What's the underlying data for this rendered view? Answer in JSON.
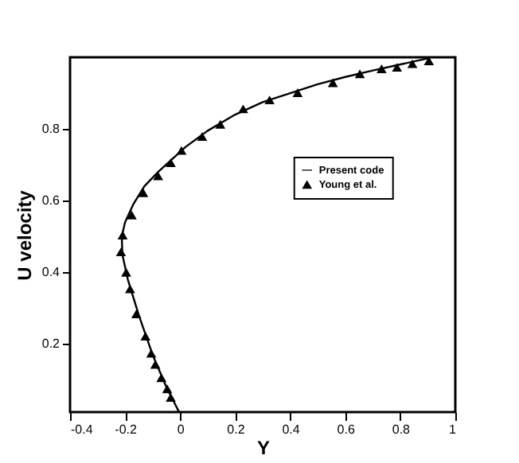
{
  "chart_data": {
    "type": "line",
    "xlabel": "Y",
    "ylabel": "U velocity",
    "xlim": [
      -0.4,
      1
    ],
    "ylim": [
      0.01,
      1
    ],
    "xticks": [
      -0.4,
      -0.2,
      0,
      0.2,
      0.4,
      0.6,
      0.8,
      1
    ],
    "yticks": [
      0.2,
      0.4,
      0.6,
      0.8
    ],
    "grid": false,
    "legend": "right",
    "series": [
      {
        "name": "Present code",
        "type": "line",
        "color": "#000000",
        "line_style": "solid",
        "marker": "none",
        "x": [
          -0.005,
          -0.05,
          -0.1,
          -0.15,
          -0.19,
          -0.21,
          -0.212,
          -0.2,
          -0.17,
          -0.13,
          -0.08,
          -0.03,
          0.02,
          0.1,
          0.2,
          0.3,
          0.4,
          0.5,
          0.6,
          0.7,
          0.8,
          0.9
        ],
        "values": [
          0.012,
          0.08,
          0.17,
          0.28,
          0.38,
          0.45,
          0.5,
          0.54,
          0.59,
          0.64,
          0.68,
          0.715,
          0.75,
          0.795,
          0.84,
          0.875,
          0.9,
          0.925,
          0.945,
          0.963,
          0.98,
          0.997
        ]
      },
      {
        "name": "Young et al.",
        "type": "scatter",
        "color": "#000000",
        "marker": "triangle",
        "x": [
          0.904,
          0.844,
          0.788,
          0.732,
          0.653,
          0.555,
          0.427,
          0.325,
          0.229,
          0.146,
          0.08,
          0.005,
          -0.034,
          -0.08,
          -0.134,
          -0.176,
          -0.209,
          -0.215,
          -0.196,
          -0.182,
          -0.159,
          -0.126,
          -0.105,
          -0.09,
          -0.068,
          -0.047,
          -0.034
        ],
        "values": [
          0.99,
          0.982,
          0.972,
          0.968,
          0.954,
          0.929,
          0.901,
          0.881,
          0.856,
          0.813,
          0.779,
          0.74,
          0.706,
          0.669,
          0.622,
          0.56,
          0.504,
          0.457,
          0.4,
          0.354,
          0.284,
          0.222,
          0.174,
          0.143,
          0.106,
          0.075,
          0.051
        ]
      }
    ]
  }
}
